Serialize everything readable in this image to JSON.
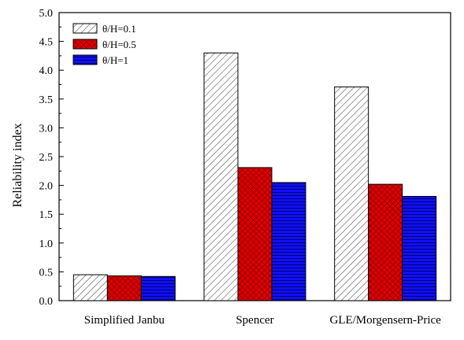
{
  "chart_data": {
    "type": "bar",
    "categories": [
      "Simplified Janbu",
      "Spencer",
      "GLE/Morgensern-Price"
    ],
    "series": [
      {
        "name": "θ/H=0.1",
        "values": [
          0.45,
          4.3,
          3.71
        ],
        "fill_pattern": "diagonal-hatch",
        "color": "#ffffff",
        "hatch_color": "#555555"
      },
      {
        "name": "θ/H=0.5",
        "values": [
          0.43,
          2.31,
          2.02
        ],
        "fill_pattern": "crosshatch",
        "color": "#e00000",
        "hatch_color": "#5a0000"
      },
      {
        "name": "θ/H=1",
        "values": [
          0.42,
          2.05,
          1.81
        ],
        "fill_pattern": "horizontal-lines",
        "color": "#1010ff",
        "hatch_color": "#000066"
      }
    ],
    "xlabel": "",
    "ylabel": "Reliability index",
    "ylim": [
      0,
      5.0
    ],
    "yticks": [
      "0.0",
      "0.5",
      "1.0",
      "1.5",
      "2.0",
      "2.5",
      "3.0",
      "3.5",
      "4.0",
      "4.5",
      "5.0"
    ],
    "grid": false,
    "legend_position": "top-left"
  }
}
